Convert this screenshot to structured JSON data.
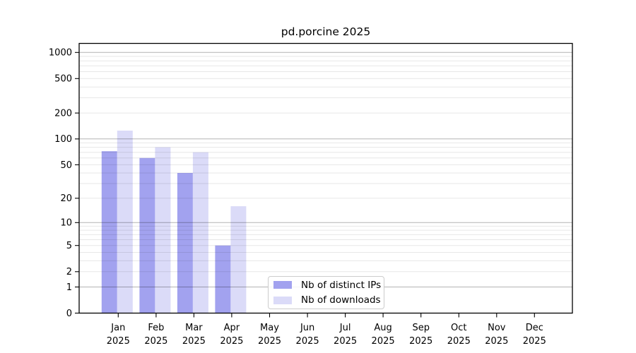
{
  "chart_data": {
    "type": "bar",
    "title": "pd.porcine 2025",
    "x_categories": [
      "Jan",
      "Feb",
      "Mar",
      "Apr",
      "May",
      "Jun",
      "Jul",
      "Aug",
      "Sep",
      "Oct",
      "Nov",
      "Dec"
    ],
    "x_year_label": "2025",
    "y_scale": "log1p",
    "y_ticks": [
      0,
      1,
      2,
      5,
      10,
      20,
      50,
      100,
      200,
      500,
      1000
    ],
    "y_minor_gridlines": [
      2,
      3,
      4,
      5,
      6,
      7,
      8,
      9,
      20,
      30,
      40,
      50,
      60,
      70,
      80,
      90,
      200,
      300,
      400,
      500,
      600,
      700,
      800,
      900
    ],
    "y_major_gridlines": [
      1,
      10,
      100,
      1000
    ],
    "ylim": [
      0,
      1270
    ],
    "series": [
      {
        "name": "Nb of distinct IPs",
        "color": "#a2a2ef",
        "values": [
          72,
          60,
          40,
          5,
          0,
          0,
          0,
          0,
          0,
          0,
          0,
          0
        ]
      },
      {
        "name": "Nb of downloads",
        "color": "#dbdbf8",
        "values": [
          125,
          80,
          70,
          16,
          0,
          0,
          0,
          0,
          0,
          0,
          0,
          0
        ]
      }
    ],
    "grid": {
      "major_color": "#b3b3b3",
      "minor_color": "#e7e7e7"
    },
    "axis_color": "#000000",
    "legend": {
      "items": [
        "Nb of distinct IPs",
        "Nb of downloads"
      ],
      "border_color": "#cccccc"
    }
  }
}
